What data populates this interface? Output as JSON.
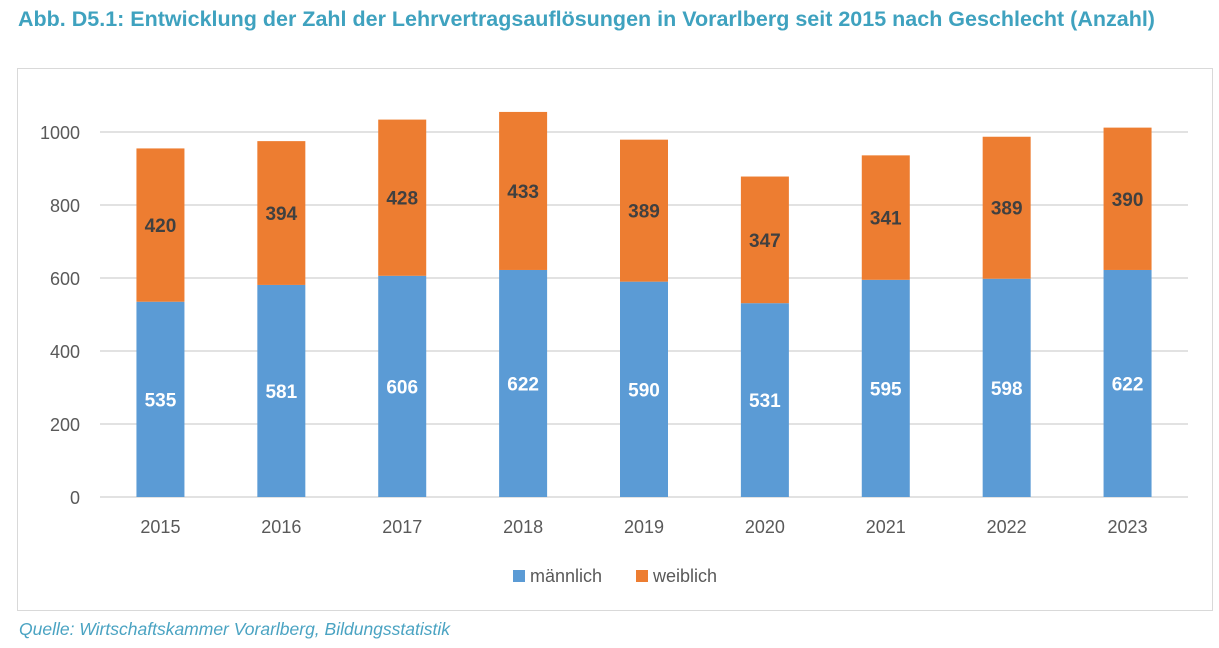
{
  "figure": {
    "title": "Abb. D5.1: Entwicklung der Zahl der Lehrvertragsauflösungen in Vorarlberg seit 2015 nach Geschlecht (Anzahl)",
    "source": "Quelle: Wirtschaftskammer Vorarlberg, Bildungsstatistik"
  },
  "colors": {
    "title": "#3fa2bf",
    "maennlich": "#5b9bd5",
    "weiblich": "#ed7d31",
    "grid": "#d9d9d9",
    "axis_text": "#595959",
    "label_on_blue": "#ffffff",
    "label_on_orange": "#404040"
  },
  "chart_data": {
    "type": "bar",
    "stacked": true,
    "title": "Abb. D5.1: Entwicklung der Zahl der Lehrvertragsauflösungen in Vorarlberg seit 2015 nach Geschlecht (Anzahl)",
    "xlabel": "",
    "ylabel": "",
    "categories": [
      "2015",
      "2016",
      "2017",
      "2018",
      "2019",
      "2020",
      "2021",
      "2022",
      "2023"
    ],
    "series": [
      {
        "name": "männlich",
        "values": [
          535,
          581,
          606,
          622,
          590,
          531,
          595,
          598,
          622
        ]
      },
      {
        "name": "weiblich",
        "values": [
          420,
          394,
          428,
          433,
          389,
          347,
          341,
          389,
          390
        ]
      }
    ],
    "ylim": [
      0,
      1000
    ],
    "yticks": [
      0,
      200,
      400,
      600,
      800,
      1000
    ],
    "grid": true,
    "legend": {
      "position": "bottom",
      "entries": [
        "männlich",
        "weiblich"
      ]
    },
    "data_labels": true
  }
}
